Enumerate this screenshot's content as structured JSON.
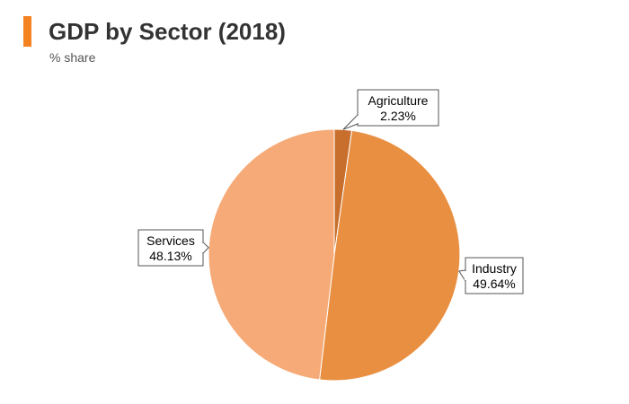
{
  "header": {
    "title": "GDP by Sector (2018)",
    "subtitle": "% share",
    "accent_color": "#f58220"
  },
  "chart_data": {
    "type": "pie",
    "title": "GDP by Sector (2018)",
    "subtitle": "% share",
    "legend": "none",
    "slices": [
      {
        "label": "Agriculture",
        "value": 2.23,
        "value_label": "2.23%",
        "color": "#c96f2e"
      },
      {
        "label": "Industry",
        "value": 49.64,
        "value_label": "49.64%",
        "color": "#e98f41"
      },
      {
        "label": "Services",
        "value": 48.13,
        "value_label": "48.13%",
        "color": "#f6aa77"
      }
    ]
  }
}
